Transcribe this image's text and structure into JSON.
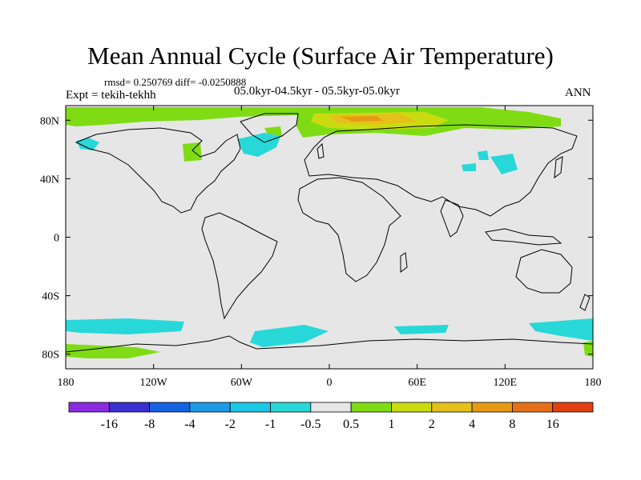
{
  "figure": {
    "title": "Mean Annual Cycle (Surface Air Temperature)",
    "stats": "rmsd= 0.250769 diff= -0.0250888",
    "experiment": "Expt = tekih-tekhh",
    "period": "05.0kyr-04.5kyr - 05.5kyr-05.0kyr",
    "season": "ANN"
  },
  "axes": {
    "x_ticks": [
      {
        "value": -180,
        "label": "180"
      },
      {
        "value": -120,
        "label": "120W"
      },
      {
        "value": -60,
        "label": "60W"
      },
      {
        "value": 0,
        "label": "0"
      },
      {
        "value": 60,
        "label": "60E"
      },
      {
        "value": 120,
        "label": "120E"
      },
      {
        "value": 180,
        "label": "180"
      }
    ],
    "y_ticks": [
      {
        "value": 80,
        "label": "80N"
      },
      {
        "value": 40,
        "label": "40N"
      },
      {
        "value": 0,
        "label": "0"
      },
      {
        "value": -40,
        "label": "40S"
      },
      {
        "value": -80,
        "label": "80S"
      }
    ]
  },
  "colorbar": {
    "colors": [
      "#8a2be2",
      "#3a2fd0",
      "#1462e0",
      "#1e9ae6",
      "#1cc8e8",
      "#28d8d8",
      "#e6e6e6",
      "#7fdc14",
      "#cadc10",
      "#e6c01a",
      "#e69a14",
      "#e6701a",
      "#e0400f"
    ],
    "labels": [
      "-16",
      "-8",
      "-4",
      "-2",
      "-1",
      "-0.5",
      "0.5",
      "1",
      "2",
      "4",
      "8",
      "16"
    ]
  },
  "colors": {
    "neutral": "#e6e6e6",
    "green": "#7fdc14",
    "yellow": "#cadc10",
    "gold": "#e6c01a",
    "orange": "#e69a14",
    "cyan": "#28d8d8",
    "lightblue": "#1cc8e8"
  }
}
